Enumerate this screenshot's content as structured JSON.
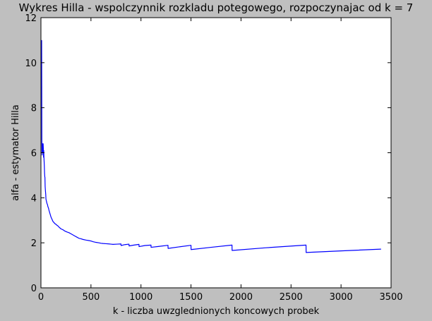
{
  "chart_data": {
    "type": "line",
    "title": "Wykres Hilla - wspolczynnik rozkladu potegowego, rozpoczynajac od k = 7",
    "xlabel": "k - liczba uwzglednionych koncowych probek",
    "ylabel": "alfa - estymator Hilla",
    "xlim": [
      0,
      3500
    ],
    "ylim": [
      0,
      12
    ],
    "xticks": [
      "0",
      "500",
      "1000",
      "1500",
      "2000",
      "2500",
      "3000",
      "3500"
    ],
    "yticks": [
      "0",
      "2",
      "4",
      "6",
      "8",
      "10",
      "12"
    ],
    "grid": false,
    "legend": "none",
    "series": [
      {
        "color": "#0000ff",
        "x": [
          7,
          8,
          9,
          10,
          11,
          12,
          13,
          14,
          15,
          16,
          17,
          18,
          20,
          22,
          24,
          26,
          28,
          30,
          32,
          34,
          36,
          38,
          40,
          42,
          45,
          48,
          50,
          52,
          55,
          60,
          65,
          70,
          75,
          80,
          90,
          100,
          110,
          120,
          130,
          140,
          150,
          160,
          170,
          180,
          200,
          220,
          240,
          260,
          280,
          300,
          320,
          340,
          360,
          380,
          400,
          420,
          450,
          480,
          500,
          520,
          550,
          580,
          600,
          620,
          650,
          680,
          700,
          720,
          760,
          800,
          801,
          840,
          880,
          881,
          930,
          980,
          981,
          1040,
          1100,
          1101,
          1180,
          1270,
          1271,
          1380,
          1500,
          1501,
          1700,
          1910,
          1911,
          2250,
          2650,
          2651,
          3000,
          3400
        ],
        "y": [
          11.0,
          9.0,
          6.6,
          6.0,
          6.4,
          5.9,
          6.3,
          6.0,
          6.4,
          6.2,
          6.0,
          6.3,
          6.0,
          6.4,
          6.2,
          5.8,
          6.1,
          5.8,
          5.6,
          5.4,
          5.1,
          4.95,
          4.9,
          4.5,
          4.3,
          4.15,
          3.95,
          3.9,
          3.85,
          3.75,
          3.7,
          3.6,
          3.55,
          3.45,
          3.3,
          3.15,
          3.05,
          2.95,
          2.9,
          2.85,
          2.82,
          2.78,
          2.75,
          2.7,
          2.62,
          2.58,
          2.52,
          2.48,
          2.45,
          2.4,
          2.35,
          2.3,
          2.25,
          2.2,
          2.18,
          2.15,
          2.12,
          2.1,
          2.08,
          2.05,
          2.02,
          2.0,
          1.98,
          1.97,
          1.96,
          1.95,
          1.94,
          1.93,
          1.94,
          1.95,
          1.88,
          1.92,
          1.94,
          1.86,
          1.9,
          1.93,
          1.83,
          1.88,
          1.9,
          1.8,
          1.84,
          1.89,
          1.75,
          1.82,
          1.89,
          1.7,
          1.8,
          1.9,
          1.66,
          1.78,
          1.9,
          1.57,
          1.64,
          1.72
        ]
      }
    ]
  }
}
